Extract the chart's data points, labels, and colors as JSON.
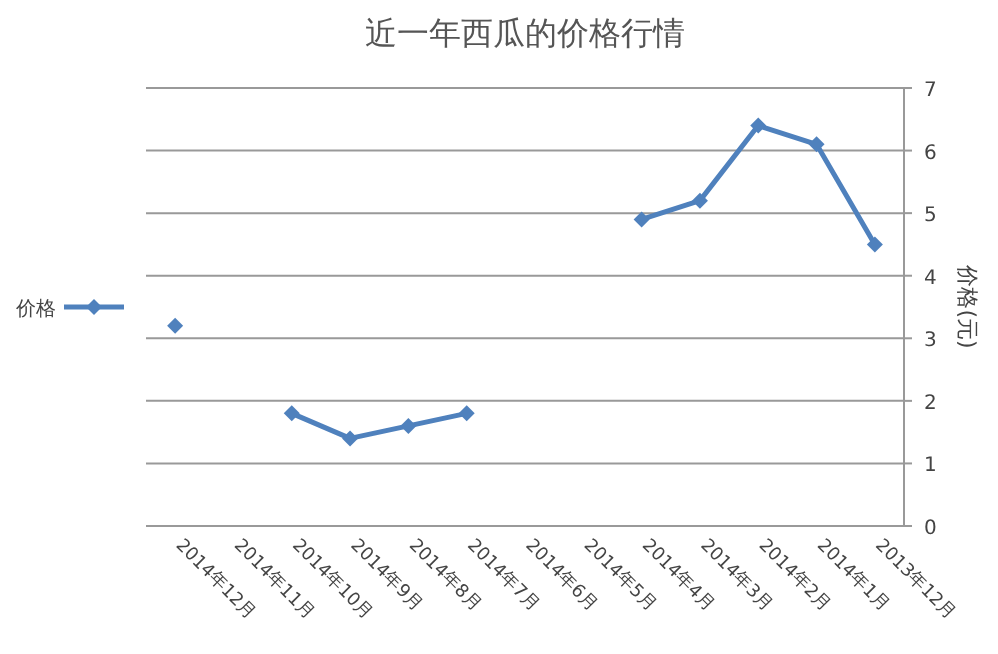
{
  "chart_data": {
    "type": "line",
    "title": "近一年西瓜的价格行情",
    "ylabel": "价格(元)",
    "categories": [
      "2014年12月",
      "2014年11月",
      "2014年10月",
      "2014年9月",
      "2014年8月",
      "2014年7月",
      "2014年6月",
      "2014年5月",
      "2014年4月",
      "2014年3月",
      "2014年2月",
      "2014年1月",
      "2013年12月"
    ],
    "series": [
      {
        "name": "价格",
        "color": "#4f81bd",
        "values": [
          3.2,
          null,
          1.8,
          1.4,
          1.6,
          1.8,
          null,
          null,
          4.9,
          5.2,
          6.4,
          6.1,
          4.5
        ]
      }
    ],
    "ylim": [
      0,
      7
    ],
    "yticks": [
      0,
      1,
      2,
      3,
      4,
      5,
      6,
      7
    ],
    "grid": "y",
    "legend": "left",
    "marker": "diamond",
    "line_style": "solid"
  }
}
